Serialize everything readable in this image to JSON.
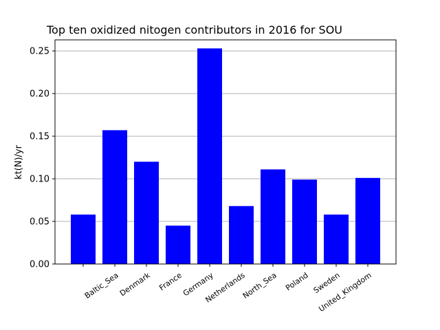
{
  "chart_data": {
    "type": "bar",
    "title": "Top ten oxidized nitogen contributors in 2016 for  SOU",
    "xlabel": "",
    "ylabel": "kt(N)/yr",
    "categories": [
      "",
      "Baltic_Sea",
      "Denmark",
      "France",
      "Germany",
      "Netherlands",
      "North_Sea",
      "Poland",
      "Sweden",
      "United_Kingdom"
    ],
    "values": [
      0.058,
      0.157,
      0.12,
      0.045,
      0.253,
      0.068,
      0.111,
      0.099,
      0.058,
      0.101
    ],
    "ylim": [
      0,
      0.263
    ],
    "yticks": [
      0.0,
      0.05,
      0.1,
      0.15,
      0.2,
      0.25
    ],
    "ytick_labels": [
      "0.00",
      "0.05",
      "0.10",
      "0.15",
      "0.20",
      "0.25"
    ],
    "grid": "y",
    "bar_color": "#0000ff"
  }
}
